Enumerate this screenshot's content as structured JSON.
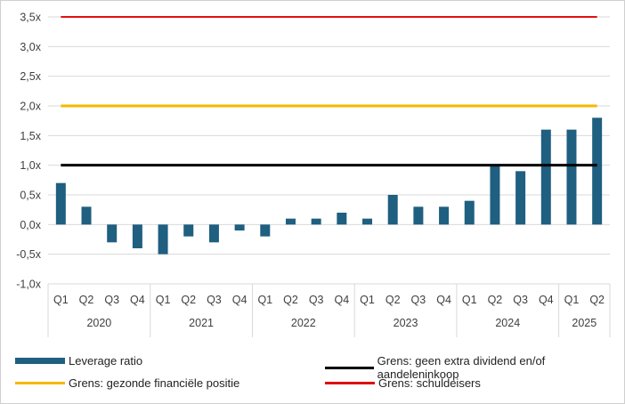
{
  "chart_data": {
    "type": "bar",
    "ylim": [
      -1.0,
      3.5
    ],
    "ytick_step": 0.5,
    "ytick_labels": [
      "-1,0x",
      "-0,5x",
      "0,0x",
      "0,5x",
      "1,0x",
      "1,5x",
      "2,0x",
      "2,5x",
      "3,0x",
      "3,5x"
    ],
    "categories": [
      "Q1",
      "Q2",
      "Q3",
      "Q4",
      "Q1",
      "Q2",
      "Q3",
      "Q4",
      "Q1",
      "Q2",
      "Q3",
      "Q4",
      "Q1",
      "Q2",
      "Q3",
      "Q4",
      "Q1",
      "Q2",
      "Q3",
      "Q4",
      "Q1",
      "Q2"
    ],
    "years": [
      {
        "label": "2020",
        "count": 4
      },
      {
        "label": "2021",
        "count": 4
      },
      {
        "label": "2022",
        "count": 4
      },
      {
        "label": "2023",
        "count": 4
      },
      {
        "label": "2024",
        "count": 4
      },
      {
        "label": "2025",
        "count": 2
      }
    ],
    "series": [
      {
        "name": "Leverage ratio",
        "color": "#1f5f80",
        "values": [
          0.7,
          0.3,
          -0.3,
          -0.4,
          -0.5,
          -0.2,
          -0.3,
          -0.1,
          -0.2,
          0.1,
          0.1,
          0.2,
          0.1,
          0.5,
          0.3,
          0.3,
          0.4,
          1.0,
          0.9,
          1.6,
          1.6,
          1.8
        ]
      }
    ],
    "thresholds": [
      {
        "name": "Grens: geen extra dividend en/of aandeleninkoop",
        "value": 1.0,
        "color": "#000000"
      },
      {
        "name": "Grens: gezonde financiële positie",
        "value": 2.0,
        "color": "#f5b800"
      },
      {
        "name": "Grens: schuldeisers",
        "value": 3.5,
        "color": "#e01010"
      }
    ],
    "grid": true,
    "legend_position": "bottom"
  }
}
